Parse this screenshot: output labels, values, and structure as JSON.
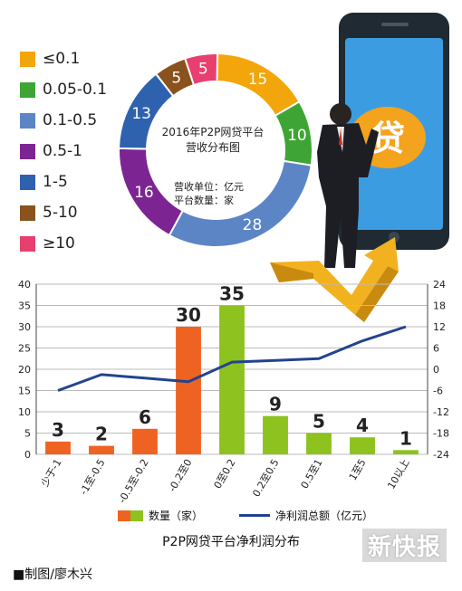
{
  "colors": {
    "orange": "#f2a60b",
    "green": "#3ea535",
    "lightblue": "#5c85c6",
    "purple": "#7c2592",
    "blue": "#2f62ae",
    "brown": "#8a521c",
    "pink": "#e83f6f",
    "bar_orange": "#ee6322",
    "bar_green": "#8dc21f",
    "line_blue": "#23438f"
  },
  "legend": [
    {
      "label": "≤0.1",
      "color": "orange"
    },
    {
      "label": "0.05-0.1",
      "color": "green"
    },
    {
      "label": "0.1-0.5",
      "color": "lightblue"
    },
    {
      "label": "0.5-1",
      "color": "purple"
    },
    {
      "label": "1-5",
      "color": "blue"
    },
    {
      "label": "5-10",
      "color": "brown"
    },
    {
      "label": "≥10",
      "color": "pink"
    }
  ],
  "donut": {
    "title_line1": "2016年P2P网贷平台",
    "title_line2": "营收分布图",
    "unit_line1": "营收单位：亿元",
    "unit_line2": "平台数量：家"
  },
  "bar_legend": {
    "count_label": "数量（家）",
    "line_label": "净利润总额（亿元）"
  },
  "bar_title": "P2P网贷平台净利润分布",
  "credit": "■制图/廖木兴",
  "brand": "新快报",
  "art": {
    "sign_char": "贷"
  },
  "chart_data": [
    {
      "type": "pie",
      "title": "2016年P2P网贷平台营收分布图",
      "categories": [
        "≤0.1",
        "0.05-0.1",
        "0.1-0.5",
        "0.5-1",
        "1-5",
        "5-10",
        "≥10"
      ],
      "values": [
        15,
        10,
        28,
        16,
        13,
        5,
        5
      ]
    },
    {
      "type": "bar",
      "title": "P2P网贷平台净利润分布",
      "categories": [
        "少于-1",
        "-1至-0.5",
        "-0.5至-0.2",
        "-0.2至0",
        "0至0.2",
        "0.2至0.5",
        "0.5至1",
        "1至5",
        "10以上"
      ],
      "series": [
        {
          "name": "数量（家）",
          "values": [
            3,
            2,
            6,
            30,
            35,
            9,
            5,
            4,
            1
          ],
          "axis": "left"
        },
        {
          "name": "净利润总额（亿元）",
          "values": [
            -6,
            -1.5,
            -2.5,
            -3.5,
            2,
            2.5,
            3,
            8,
            12
          ],
          "axis": "right",
          "type": "line"
        }
      ],
      "bar_colors": [
        "bar_orange",
        "bar_orange",
        "bar_orange",
        "bar_orange",
        "bar_green",
        "bar_green",
        "bar_green",
        "bar_green",
        "bar_green"
      ],
      "ylim_left": [
        0,
        40
      ],
      "yticks_left": [
        0,
        5,
        10,
        15,
        20,
        25,
        30,
        35,
        40
      ],
      "ylim_right": [
        -24,
        24
      ],
      "yticks_right": [
        -24,
        -18,
        -12,
        -6,
        0,
        6,
        12,
        18,
        24
      ],
      "grid": true
    }
  ]
}
